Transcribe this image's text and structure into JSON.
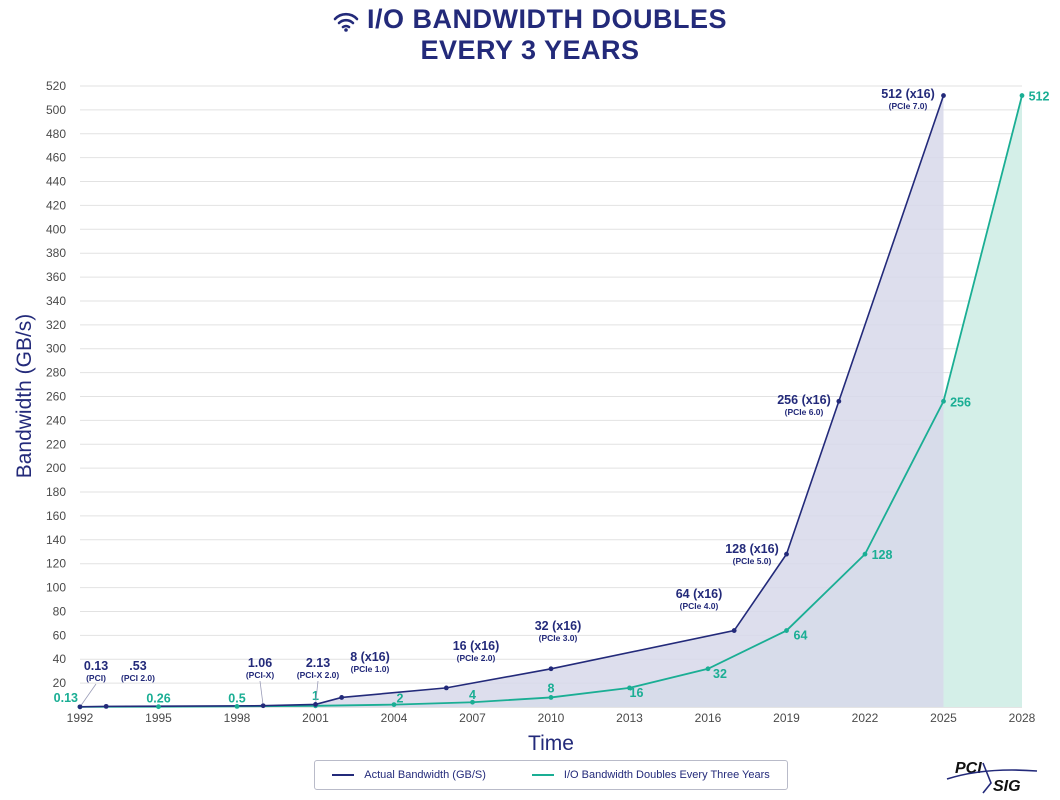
{
  "header": {
    "title_line1": "I/O BANDWIDTH DOUBLES",
    "title_line2": "EVERY 3 YEARS",
    "icon": "wifi-icon"
  },
  "colors": {
    "actual": "#232a7a",
    "projection": "#1aae94",
    "actual_fill": "#d7d8ea",
    "projection_fill": "#d4efe8",
    "grid": "#e2e2e2",
    "axis_text": "#4a4a4a"
  },
  "chart_data": {
    "type": "area",
    "title": "I/O BANDWIDTH DOUBLES EVERY 3 YEARS",
    "xlabel": "Time",
    "ylabel": "Bandwidth (GB/s)",
    "xlim": [
      1992,
      2028
    ],
    "ylim": [
      0,
      520
    ],
    "xticks": [
      1992,
      1995,
      1998,
      2001,
      2004,
      2007,
      2010,
      2013,
      2016,
      2019,
      2022,
      2025,
      2028
    ],
    "yticks": [
      20,
      40,
      60,
      80,
      100,
      120,
      140,
      160,
      180,
      200,
      220,
      240,
      260,
      280,
      300,
      320,
      340,
      360,
      380,
      400,
      420,
      440,
      460,
      480,
      500,
      520
    ],
    "grid": true,
    "legend_position": "bottom-center",
    "series": [
      {
        "name": "Actual Bandwidth (GB/S)",
        "points": [
          {
            "x": 1992,
            "y": 0.13,
            "label": "0.13",
            "sublabel": "(PCI)"
          },
          {
            "x": 1993,
            "y": 0.53,
            "label": ".53",
            "sublabel": "(PCI 2.0)"
          },
          {
            "x": 1999,
            "y": 1.06,
            "label": "1.06",
            "sublabel": "(PCI-X)"
          },
          {
            "x": 2001,
            "y": 2.13,
            "label": "2.13",
            "sublabel": "(PCI-X 2.0)"
          },
          {
            "x": 2002,
            "y": 8,
            "label": "8 (x16)",
            "sublabel": "(PCIe 1.0)"
          },
          {
            "x": 2006,
            "y": 16,
            "label": "16 (x16)",
            "sublabel": "(PCIe 2.0)"
          },
          {
            "x": 2010,
            "y": 32,
            "label": "32 (x16)",
            "sublabel": "(PCIe 3.0)"
          },
          {
            "x": 2017,
            "y": 64,
            "label": "64 (x16)",
            "sublabel": "(PCIe 4.0)"
          },
          {
            "x": 2019,
            "y": 128,
            "label": "128 (x16)",
            "sublabel": "(PCIe 5.0)"
          },
          {
            "x": 2021,
            "y": 256,
            "label": "256 (x16)",
            "sublabel": "(PCIe 6.0)"
          },
          {
            "x": 2025,
            "y": 512,
            "label": "512 (x16)",
            "sublabel": "(PCIe 7.0)"
          }
        ]
      },
      {
        "name": "I/O Bandwidth Doubles Every Three Years",
        "points": [
          {
            "x": 1992,
            "y": 0.13,
            "label": "0.13"
          },
          {
            "x": 1995,
            "y": 0.26,
            "label": "0.26"
          },
          {
            "x": 1998,
            "y": 0.5,
            "label": "0.5"
          },
          {
            "x": 2001,
            "y": 1,
            "label": "1"
          },
          {
            "x": 2004,
            "y": 2,
            "label": "2"
          },
          {
            "x": 2007,
            "y": 4,
            "label": "4"
          },
          {
            "x": 2010,
            "y": 8,
            "label": "8"
          },
          {
            "x": 2013,
            "y": 16,
            "label": "16"
          },
          {
            "x": 2016,
            "y": 32,
            "label": "32"
          },
          {
            "x": 2019,
            "y": 64,
            "label": "64"
          },
          {
            "x": 2022,
            "y": 128,
            "label": "128"
          },
          {
            "x": 2025,
            "y": 256,
            "label": "256"
          },
          {
            "x": 2028,
            "y": 512,
            "label": "512"
          }
        ]
      }
    ]
  },
  "legend": {
    "actual_label": "Actual Bandwidth (GB/S)",
    "projection_label": "I/O Bandwidth Doubles Every Three Years"
  },
  "logo": {
    "text_top": "PCI",
    "text_bottom": "SIG"
  }
}
